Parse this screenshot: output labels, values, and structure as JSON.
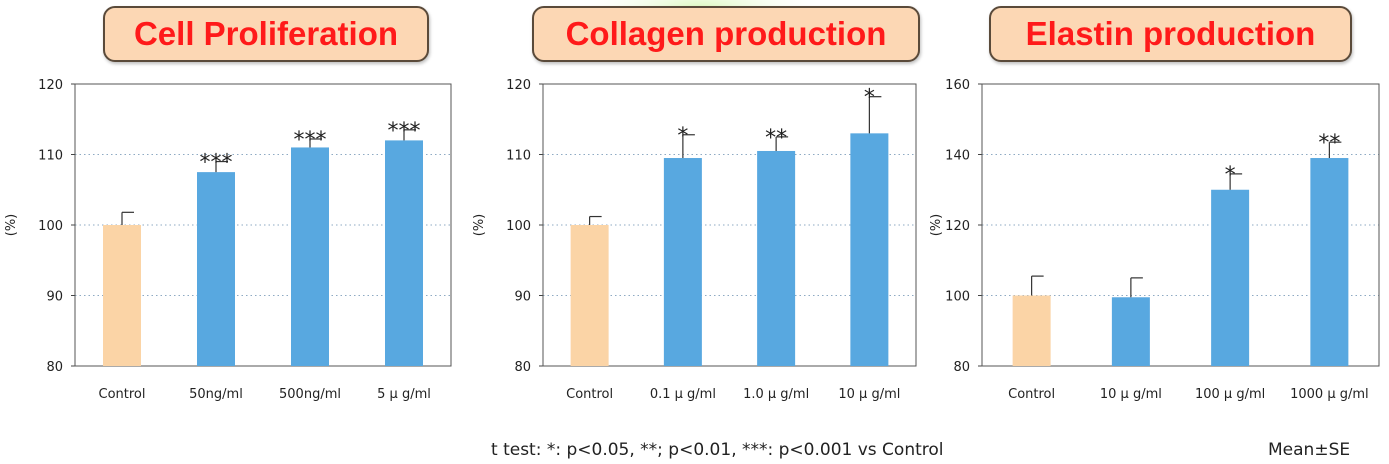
{
  "colors": {
    "control": "#fbd4a6",
    "treated": "#58a8e0",
    "title_text": "#ff1a1a",
    "title_box": "#fcd7b4"
  },
  "footnote": "t test: *: p<0.05, **; p<0.01, ***: p<0.001 vs Control",
  "mean_se": "Mean±SE",
  "chart_data": [
    {
      "type": "bar",
      "title": "Cell Proliferation",
      "ylabel": "(%)",
      "ylim": [
        80,
        120
      ],
      "yticks": [
        80,
        90,
        100,
        110,
        120
      ],
      "grid": true,
      "categories": [
        "Control",
        "50ng/ml",
        "500ng/ml",
        "5 μ g/ml"
      ],
      "values": [
        100,
        107.5,
        111,
        112
      ],
      "errors": [
        1.8,
        1.5,
        1.2,
        1.5
      ],
      "significance": [
        "",
        "***",
        "***",
        "***"
      ]
    },
    {
      "type": "bar",
      "title": "Collagen production",
      "ylabel": "(%)",
      "ylim": [
        80,
        120
      ],
      "yticks": [
        80,
        90,
        100,
        110,
        120
      ],
      "grid": true,
      "categories": [
        "Control",
        "0.1 μ g/ml",
        "1.0 μ g/ml",
        "10 μ g/ml"
      ],
      "values": [
        100,
        109.5,
        110.5,
        113
      ],
      "errors": [
        1.2,
        3.3,
        2.0,
        5.2
      ],
      "significance": [
        "",
        "*",
        "**",
        "*"
      ]
    },
    {
      "type": "bar",
      "title": "Elastin production",
      "ylabel": "(%)",
      "ylim": [
        80,
        160
      ],
      "yticks": [
        80,
        100,
        120,
        140,
        160
      ],
      "grid": true,
      "categories": [
        "Control",
        "10 μ g/ml",
        "100 μ g/ml",
        "1000 μ g/ml"
      ],
      "values": [
        100,
        99.5,
        130,
        139
      ],
      "errors": [
        5.5,
        5.5,
        4.5,
        4.5
      ],
      "significance": [
        "",
        "",
        "*",
        "**"
      ]
    }
  ]
}
